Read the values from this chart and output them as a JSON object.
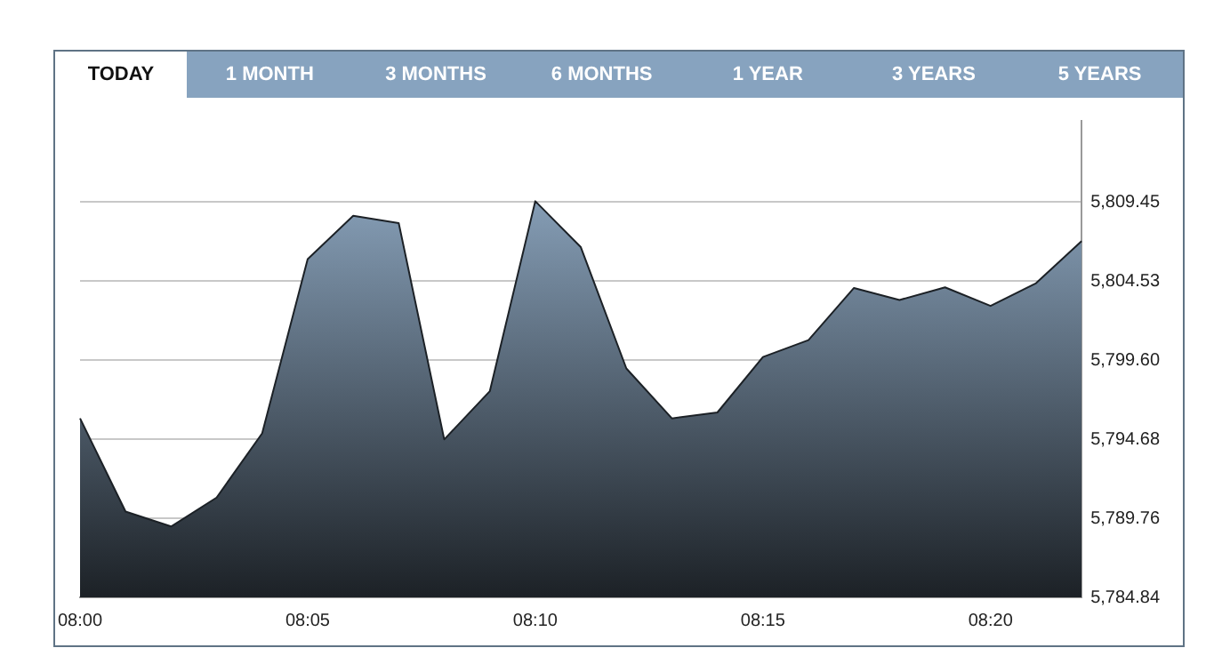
{
  "chart_data": {
    "type": "area",
    "annotations": [
      "TODAY",
      "1 MONTH",
      "3 MONTHS",
      "6 MONTHS",
      "1 YEAR",
      "3 YEARS",
      "5 YEARS"
    ],
    "categories": [
      "08:00",
      null,
      null,
      null,
      null,
      "08:05",
      null,
      null,
      null,
      null,
      "08:10",
      null,
      null,
      null,
      null,
      "08:15",
      null,
      null,
      null,
      null,
      "08:20",
      null,
      null
    ],
    "series": [
      {
        "color": "#9ab6d2",
        "values": [
          5795.98,
          5790.18,
          5789.25,
          5791.05,
          5795.05,
          5805.9,
          5808.59,
          5808.14,
          5794.67,
          5797.67,
          5809.5,
          5806.64,
          5799.09,
          5795.98,
          5796.35,
          5799.8,
          5800.85,
          5804.1,
          5803.35,
          5804.14,
          5802.98,
          5804.4,
          5807.02
        ]
      }
    ],
    "ylim": [
      5784.84,
      5814.5
    ],
    "yticks": [
      {
        "value": 5784.84,
        "label": "5,784.84"
      },
      {
        "value": 5789.76,
        "label": "5,789.76"
      },
      {
        "value": 5794.68,
        "label": "5,794.68"
      },
      {
        "value": 5799.6,
        "label": "5,799.60"
      },
      {
        "value": 5804.53,
        "label": "5,804.53"
      },
      {
        "value": 5809.45,
        "label": "5,809.45"
      }
    ],
    "grid": "y",
    "legend": false
  }
}
